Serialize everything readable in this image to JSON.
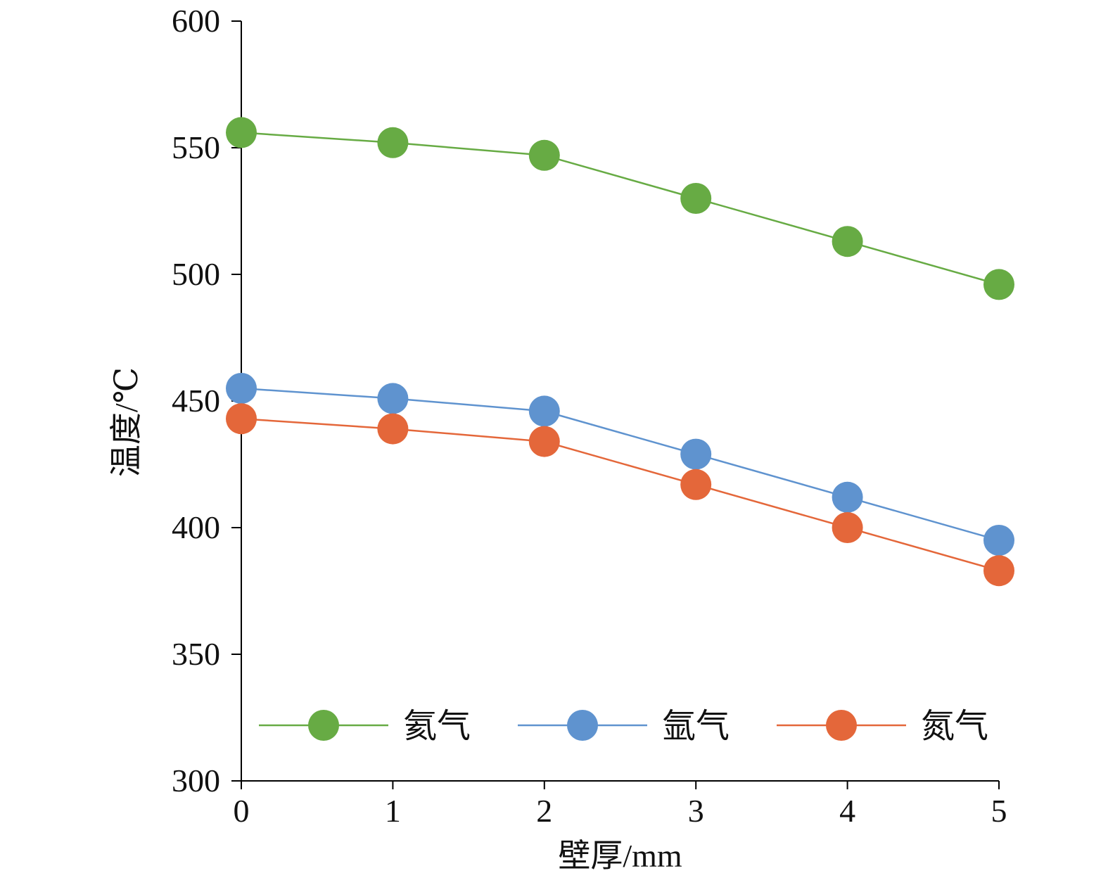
{
  "chart_data": {
    "type": "line",
    "title": "",
    "xlabel": "壁厚/mm",
    "ylabel": "温度/℃",
    "x": [
      0,
      1,
      2,
      3,
      4,
      5
    ],
    "xlim": [
      0,
      5
    ],
    "ylim": [
      300,
      600
    ],
    "yticks": [
      300,
      350,
      400,
      450,
      500,
      550,
      600
    ],
    "xticks": [
      0,
      1,
      2,
      3,
      4,
      5
    ],
    "grid": false,
    "legend": "bottom",
    "series": [
      {
        "name": "氦气",
        "color": "#67AB44",
        "values": [
          556,
          552,
          547,
          530,
          513,
          496
        ]
      },
      {
        "name": "氩气",
        "color": "#5F93CF",
        "values": [
          455,
          451,
          446,
          429,
          412,
          395
        ]
      },
      {
        "name": "氮气",
        "color": "#E4673A",
        "values": [
          443,
          439,
          434,
          417,
          400,
          383
        ]
      }
    ]
  }
}
